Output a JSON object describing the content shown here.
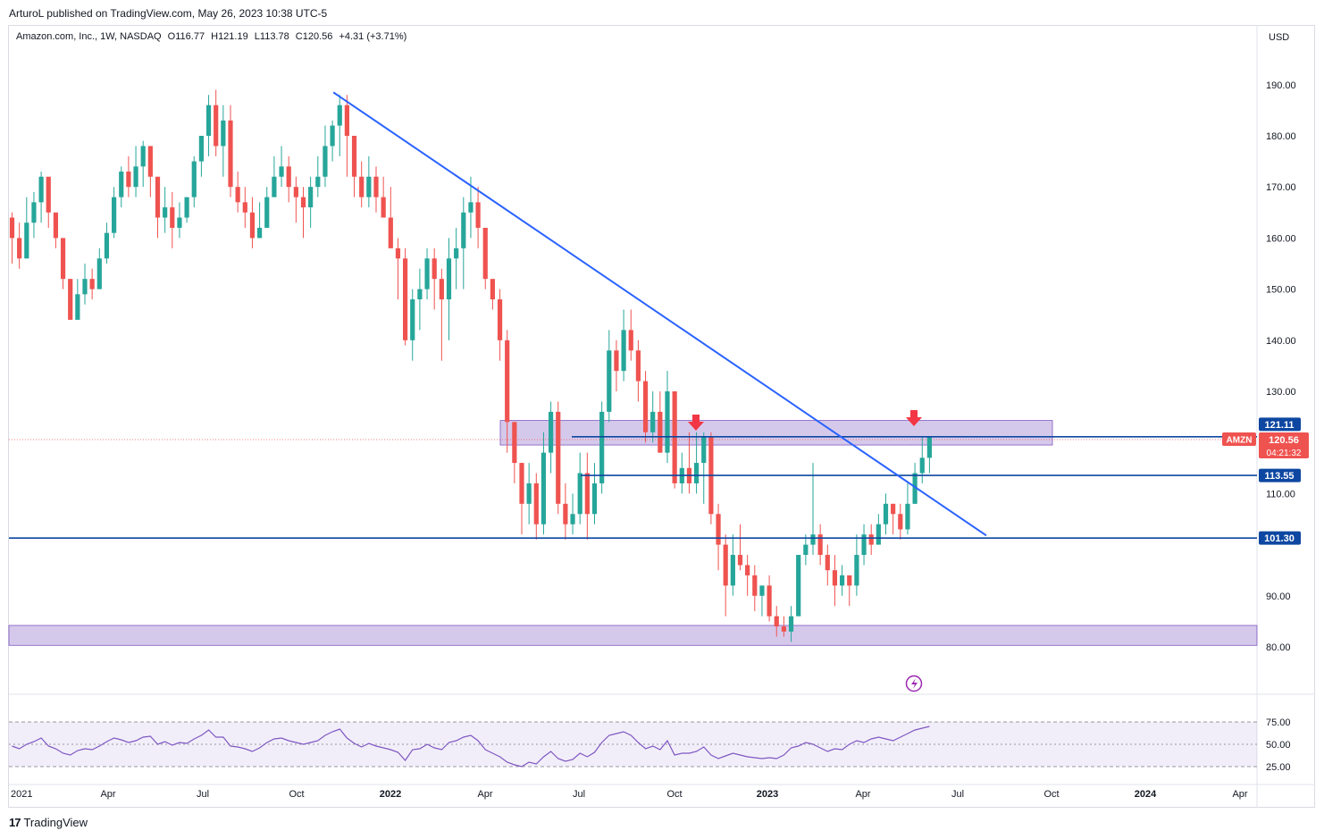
{
  "header": {
    "published": "ArturoL published on TradingView.com, May 26, 2023 10:38 UTC-5"
  },
  "legend": {
    "symbol": "Amazon.com, Inc., 1W, NASDAQ",
    "open": "O116.77",
    "high": "H121.19",
    "low": "L113.78",
    "close": "C120.56",
    "change": "+4.31 (+3.71%)"
  },
  "axis": {
    "currency": "USD",
    "price_ticks": [
      "190.00",
      "180.00",
      "170.00",
      "160.00",
      "150.00",
      "140.00",
      "130.00",
      "110.00",
      "90.00",
      "80.00"
    ],
    "rsi_ticks": [
      "75.00",
      "50.00",
      "25.00"
    ],
    "time_ticks": [
      "2021",
      "Apr",
      "Jul",
      "Oct",
      "2022",
      "Apr",
      "Jul",
      "Oct",
      "2023",
      "Apr",
      "Jul",
      "Oct",
      "2024",
      "Apr"
    ]
  },
  "badges": {
    "r1": "121.11",
    "ticker": "AMZN",
    "price": "120.56",
    "countdown": "04:21:32",
    "s1": "113.55",
    "s2": "101.30"
  },
  "footer": {
    "brand": "TradingView",
    "logo": "17"
  },
  "colors": {
    "up": "#26a69a",
    "down": "#ef5350",
    "line": "#2962ff",
    "level": "#0d47a1",
    "zone": "#b39ddb",
    "arrow": "#f23645",
    "rsi": "#7e57c2",
    "badge": "#0d47a1"
  },
  "chart_data": {
    "type": "candlestick",
    "title": "Amazon.com, Inc., 1W, NASDAQ",
    "ylim": [
      70,
      197
    ],
    "time_ticks": [
      "2021",
      "Apr",
      "Jul",
      "Oct",
      "2022",
      "Apr",
      "Jul",
      "Oct",
      "2023",
      "Apr",
      "Jul",
      "Oct",
      "2024",
      "Apr"
    ],
    "price_ticks": [
      190,
      180,
      170,
      160,
      150,
      140,
      130,
      110,
      90,
      80
    ],
    "candles": [
      [
        164,
        160,
        165,
        155
      ],
      [
        160,
        156,
        163,
        154
      ],
      [
        156,
        163,
        168,
        156
      ],
      [
        163,
        167,
        169,
        160
      ],
      [
        167,
        172,
        173,
        163
      ],
      [
        172,
        165,
        170,
        162
      ],
      [
        165,
        160,
        163,
        158
      ],
      [
        160,
        152,
        160,
        150
      ],
      [
        152,
        144,
        152,
        144
      ],
      [
        144,
        149,
        152,
        145
      ],
      [
        149,
        152,
        155,
        147
      ],
      [
        152,
        150,
        154,
        148
      ],
      [
        150,
        156,
        158,
        150
      ],
      [
        156,
        161,
        163,
        155
      ],
      [
        161,
        168,
        170,
        160
      ],
      [
        168,
        173,
        174,
        166
      ],
      [
        173,
        170,
        176,
        168
      ],
      [
        170,
        174,
        178,
        168
      ],
      [
        174,
        178,
        179,
        170
      ],
      [
        178,
        172,
        178,
        168
      ],
      [
        172,
        164,
        170,
        160
      ],
      [
        164,
        166,
        170,
        161
      ],
      [
        166,
        162,
        169,
        158
      ],
      [
        162,
        164,
        167,
        160
      ],
      [
        164,
        168,
        168,
        163
      ],
      [
        168,
        175,
        176,
        166
      ],
      [
        175,
        180,
        180,
        172
      ],
      [
        180,
        186,
        188,
        176
      ],
      [
        186,
        178,
        189,
        176
      ],
      [
        178,
        183,
        186,
        172
      ],
      [
        183,
        170,
        186,
        168
      ],
      [
        170,
        167,
        173,
        165
      ],
      [
        167,
        165,
        170,
        162
      ],
      [
        165,
        160,
        168,
        158
      ],
      [
        160,
        162,
        167,
        160
      ],
      [
        162,
        168,
        170,
        162
      ],
      [
        168,
        172,
        176,
        168
      ],
      [
        172,
        174,
        178,
        170
      ],
      [
        174,
        170,
        176,
        167
      ],
      [
        170,
        168,
        172,
        163
      ],
      [
        168,
        166,
        170,
        160
      ],
      [
        166,
        170,
        172,
        162
      ],
      [
        170,
        172,
        176,
        168
      ],
      [
        172,
        178,
        182,
        170
      ],
      [
        178,
        182,
        183,
        175
      ],
      [
        182,
        186,
        188,
        176
      ],
      [
        186,
        180,
        188,
        172
      ],
      [
        180,
        172,
        180,
        168
      ],
      [
        172,
        168,
        175,
        166
      ],
      [
        168,
        172,
        176,
        166
      ],
      [
        172,
        168,
        174,
        165
      ],
      [
        168,
        164,
        172,
        164
      ],
      [
        164,
        158,
        170,
        158
      ],
      [
        158,
        156,
        160,
        148
      ],
      [
        156,
        140,
        158,
        139
      ],
      [
        140,
        148,
        150,
        136
      ],
      [
        148,
        150,
        154,
        142
      ],
      [
        150,
        156,
        158,
        148
      ],
      [
        156,
        152,
        158,
        146
      ],
      [
        152,
        148,
        154,
        136
      ],
      [
        148,
        156,
        160,
        140
      ],
      [
        156,
        158,
        162,
        150
      ],
      [
        158,
        165,
        168,
        150
      ],
      [
        165,
        167,
        172,
        160
      ],
      [
        167,
        162,
        170,
        158
      ],
      [
        162,
        152,
        162,
        150
      ],
      [
        152,
        148,
        150,
        146
      ],
      [
        148,
        140,
        150,
        136
      ],
      [
        140,
        124,
        142,
        118
      ],
      [
        124,
        116,
        124,
        112
      ],
      [
        116,
        108,
        116,
        102
      ],
      [
        108,
        112,
        116,
        104
      ],
      [
        112,
        104,
        114,
        101
      ],
      [
        104,
        118,
        122,
        102
      ],
      [
        118,
        126,
        128,
        114
      ],
      [
        126,
        108,
        128,
        106
      ],
      [
        108,
        104,
        112,
        101
      ],
      [
        104,
        106,
        110,
        102
      ],
      [
        106,
        114,
        118,
        104
      ],
      [
        114,
        106,
        118,
        101
      ],
      [
        106,
        112,
        116,
        104
      ],
      [
        112,
        126,
        128,
        110
      ],
      [
        126,
        138,
        142,
        124
      ],
      [
        138,
        134,
        140,
        130
      ],
      [
        134,
        142,
        146,
        132
      ],
      [
        142,
        138,
        146,
        136
      ],
      [
        138,
        132,
        140,
        128
      ],
      [
        132,
        122,
        134,
        120
      ],
      [
        122,
        126,
        130,
        120
      ],
      [
        126,
        118,
        130,
        118
      ],
      [
        118,
        130,
        134,
        116
      ],
      [
        130,
        112,
        130,
        111
      ],
      [
        112,
        115,
        118,
        110
      ],
      [
        115,
        112,
        122,
        110
      ],
      [
        112,
        116,
        122,
        110
      ],
      [
        116,
        121,
        122,
        108
      ],
      [
        121,
        106,
        122,
        104
      ],
      [
        106,
        100,
        108,
        95
      ],
      [
        100,
        92,
        102,
        86
      ],
      [
        92,
        98,
        102,
        90
      ],
      [
        98,
        96,
        104,
        95
      ],
      [
        96,
        94,
        98,
        90
      ],
      [
        94,
        90,
        96,
        87
      ],
      [
        90,
        92,
        92,
        86
      ],
      [
        92,
        86,
        94,
        85
      ],
      [
        86,
        84,
        88,
        82
      ],
      [
        84,
        83,
        86,
        82
      ],
      [
        83,
        86,
        88,
        81
      ],
      [
        86,
        98,
        98,
        86
      ],
      [
        98,
        100,
        102,
        96
      ],
      [
        100,
        102,
        116,
        98
      ],
      [
        102,
        98,
        104,
        96
      ],
      [
        98,
        95,
        100,
        92
      ],
      [
        95,
        92,
        98,
        88
      ],
      [
        92,
        94,
        96,
        90
      ],
      [
        94,
        92,
        94,
        88
      ],
      [
        92,
        98,
        102,
        90
      ],
      [
        98,
        102,
        104,
        96
      ],
      [
        102,
        100,
        104,
        98
      ],
      [
        100,
        104,
        106,
        100
      ],
      [
        104,
        108,
        110,
        102
      ],
      [
        108,
        106,
        108,
        102
      ],
      [
        106,
        103,
        108,
        101
      ],
      [
        103,
        108,
        112,
        102
      ],
      [
        108,
        114,
        116,
        108
      ],
      [
        114,
        117,
        121,
        112
      ],
      [
        117,
        121,
        121,
        114
      ]
    ],
    "series_rsi": [
      48,
      45,
      50,
      53,
      57,
      48,
      45,
      40,
      38,
      43,
      45,
      44,
      48,
      53,
      57,
      55,
      52,
      54,
      58,
      59,
      50,
      53,
      49,
      52,
      51,
      56,
      60,
      66,
      58,
      58,
      48,
      47,
      45,
      42,
      46,
      52,
      56,
      57,
      54,
      52,
      50,
      52,
      54,
      60,
      64,
      67,
      57,
      51,
      47,
      51,
      48,
      46,
      44,
      41,
      32,
      44,
      45,
      50,
      46,
      44,
      52,
      54,
      58,
      60,
      54,
      44,
      40,
      36,
      30,
      27,
      25,
      30,
      28,
      36,
      42,
      34,
      31,
      33,
      40,
      36,
      41,
      52,
      60,
      62,
      64,
      60,
      52,
      45,
      48,
      44,
      54,
      38,
      40,
      40,
      42,
      47,
      38,
      34,
      37,
      40,
      38,
      36,
      35,
      34,
      35,
      34,
      38,
      46,
      48,
      52,
      50,
      46,
      42,
      45,
      44,
      50,
      54,
      52,
      56,
      58,
      56,
      54,
      58,
      62,
      66,
      68,
      70
    ],
    "levels": [
      121.11,
      113.55,
      101.3
    ],
    "zones": [
      [
        119.5,
        124.3
      ],
      [
        80.3,
        84.2
      ]
    ],
    "trendline": [
      [
        185,
        188.5
      ],
      [
        2023.6,
        101.8
      ]
    ]
  }
}
